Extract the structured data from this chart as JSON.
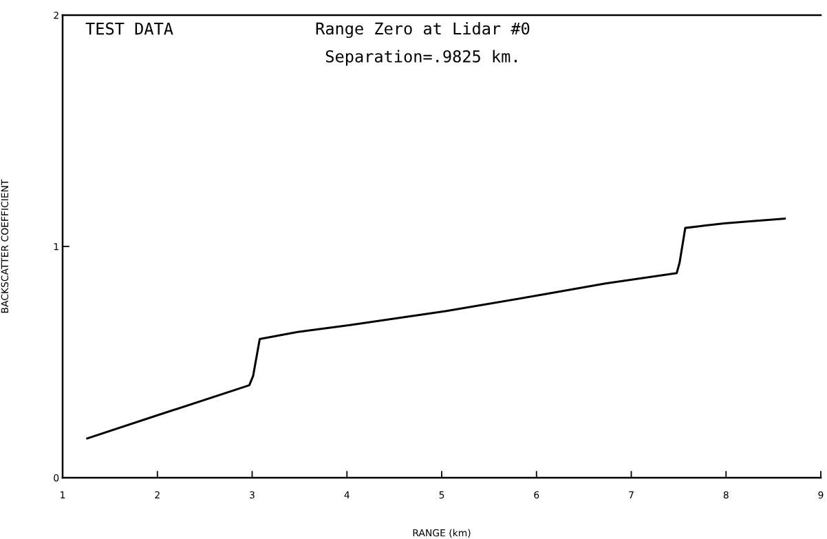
{
  "chart_data": {
    "type": "line",
    "title": "Range Zero at Lidar #0",
    "subtitle": "Separation=.9825 km.",
    "annotations": [
      "TEST DATA"
    ],
    "xlabel": "RANGE (km)",
    "ylabel": "BACKSCATTER COEFFICIENT",
    "series": [
      {
        "color": "#000000",
        "x": [
          1.26,
          2.0,
          2.97,
          3.01,
          3.08,
          3.48,
          4.03,
          5.04,
          6.04,
          6.73,
          7.48,
          7.51,
          7.57,
          7.77,
          7.98,
          8.3,
          8.62
        ],
        "values": [
          0.17,
          0.27,
          0.4,
          0.44,
          0.6,
          0.63,
          0.66,
          0.72,
          0.79,
          0.84,
          0.885,
          0.93,
          1.08,
          1.09,
          1.1,
          1.11,
          1.12
        ]
      }
    ],
    "xlim": [
      1,
      9
    ],
    "xticks": [
      1,
      2,
      3,
      4,
      5,
      6,
      7,
      8,
      9
    ],
    "ylim": [
      0,
      2
    ],
    "yticks": [
      0,
      1,
      2
    ],
    "grid": false,
    "legend": false,
    "marker": "none",
    "line_style": "solid"
  }
}
